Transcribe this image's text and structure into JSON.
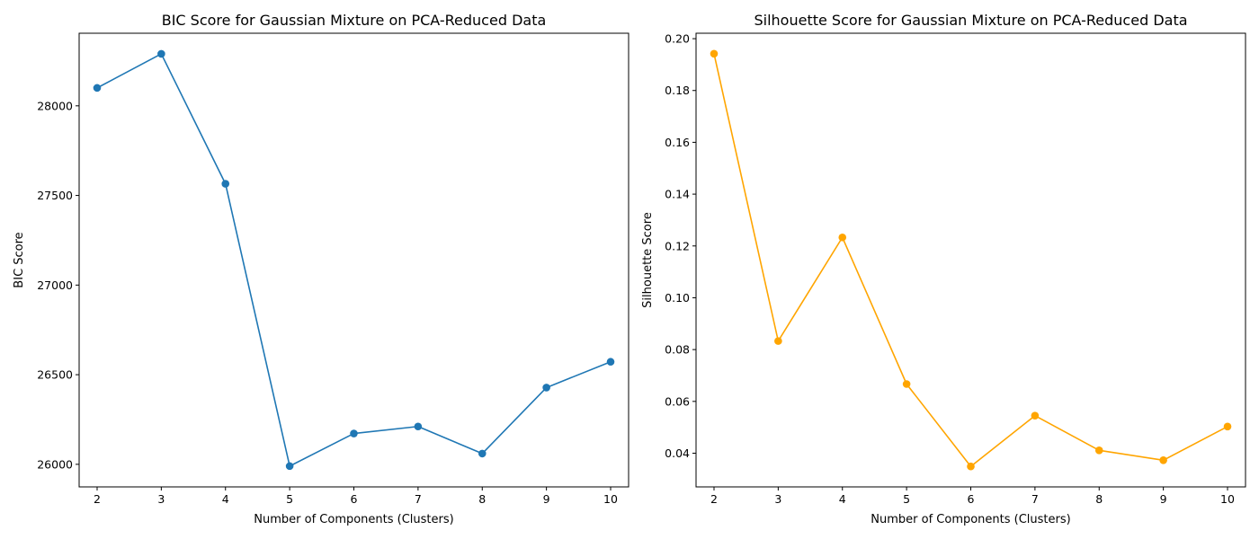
{
  "chart_data": [
    {
      "type": "line",
      "title": "BIC Score for Gaussian Mixture on PCA-Reduced Data",
      "xlabel": "Number of Components (Clusters)",
      "ylabel": "BIC Score",
      "x": [
        2,
        3,
        4,
        5,
        6,
        7,
        8,
        9,
        10
      ],
      "series": [
        {
          "values": [
            28100,
            28290,
            27565,
            25990,
            26172,
            26211,
            26060,
            26428,
            26572
          ],
          "color": "#1f77b4",
          "marker": "circle"
        }
      ],
      "xlim": [
        1.72,
        10.28
      ],
      "ylim": [
        25874,
        28405
      ],
      "xticks": [
        2,
        3,
        4,
        5,
        6,
        7,
        8,
        9,
        10
      ],
      "yticks": [
        26000,
        26500,
        27000,
        27500,
        28000
      ],
      "grid": false,
      "legend": false
    },
    {
      "type": "line",
      "title": "Silhouette Score for Gaussian Mixture on PCA-Reduced Data",
      "xlabel": "Number of Components (Clusters)",
      "ylabel": "Silhouette Score",
      "x": [
        2,
        3,
        4,
        5,
        6,
        7,
        8,
        9,
        10
      ],
      "series": [
        {
          "values": [
            0.1942,
            0.0833,
            0.1233,
            0.0667,
            0.0349,
            0.0545,
            0.0411,
            0.0373,
            0.0503
          ],
          "color": "#ffa500",
          "marker": "circle"
        }
      ],
      "xlim": [
        1.72,
        10.28
      ],
      "ylim": [
        0.027,
        0.2021
      ],
      "xticks": [
        2,
        3,
        4,
        5,
        6,
        7,
        8,
        9,
        10
      ],
      "yticks": [
        0.04,
        0.06,
        0.08,
        0.1,
        0.12,
        0.14,
        0.16,
        0.18,
        0.2
      ],
      "ytick_labels": [
        "0.04",
        "0.06",
        "0.08",
        "0.10",
        "0.12",
        "0.14",
        "0.16",
        "0.18",
        "0.20"
      ],
      "grid": false,
      "legend": false
    }
  ]
}
